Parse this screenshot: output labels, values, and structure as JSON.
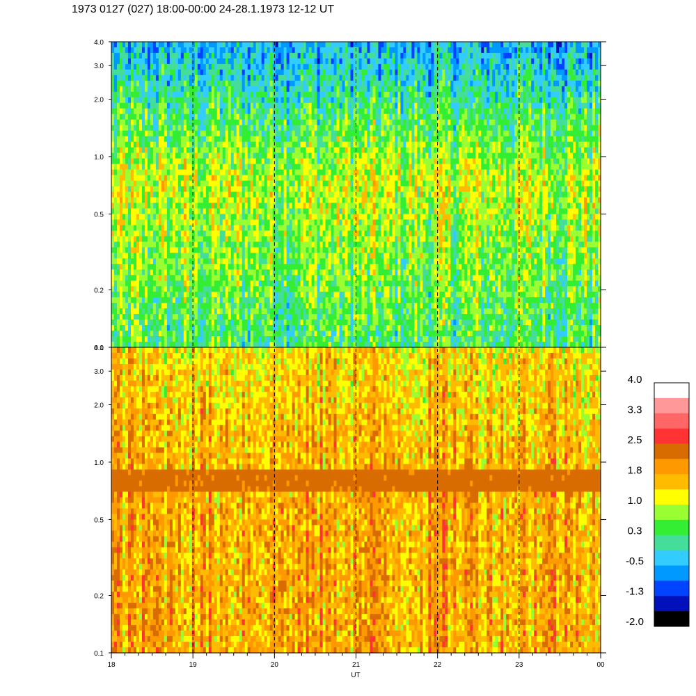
{
  "title": "1973 0127 (027) 18:00-00:00 24-28.1.1973  12-12 UT",
  "chart_data": {
    "type": "heatmap",
    "xlabel": "UT",
    "x_ticks": [
      "18",
      "19",
      "20",
      "21",
      "22",
      "23",
      "00"
    ],
    "x_tick_hours": [
      18,
      19,
      20,
      21,
      22,
      23,
      24
    ],
    "y_scale": "log",
    "ylim": [
      0.1,
      4.0
    ],
    "y_ticks": [
      {
        "value": 0.1,
        "label": "0.1"
      },
      {
        "value": 0.2,
        "label": "0.2"
      },
      {
        "value": 0.5,
        "label": "0.5"
      },
      {
        "value": 1.0,
        "label": "1.0"
      },
      {
        "value": 2.0,
        "label": "2.0"
      },
      {
        "value": 3.0,
        "label": "3.0"
      },
      {
        "value": 4.0,
        "label": "4.0"
      }
    ],
    "vertical_dashed_lines_at_hours": [
      19,
      20,
      21,
      22,
      23
    ],
    "panels": [
      {
        "name": "upper",
        "dominant_levels": {
          "low_freq": 0.3,
          "mid_freq": 1.0,
          "high_freq": -0.5
        },
        "band_at": null
      },
      {
        "name": "lower",
        "dominant_levels": {
          "low_freq": 1.8,
          "mid_freq": 1.8,
          "high_freq": 1.4
        },
        "band_at": 0.8
      }
    ],
    "colorbar": {
      "labels": [
        "4.0",
        "3.3",
        "2.5",
        "1.8",
        "1.0",
        "0.3",
        "-0.5",
        "-1.3",
        "-2.0"
      ],
      "range": [
        -2.0,
        4.0
      ],
      "colors": [
        "#ffffff",
        "#ff9999",
        "#ff6666",
        "#ff3333",
        "#d86c00",
        "#ff9900",
        "#ffbb00",
        "#ffff00",
        "#99ff33",
        "#33ee33",
        "#44dd99",
        "#33ccff",
        "#0099ff",
        "#0044ff",
        "#0011bb",
        "#000000"
      ]
    }
  }
}
